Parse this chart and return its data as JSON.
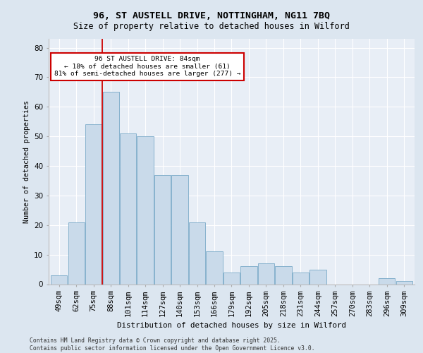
{
  "title1": "96, ST AUSTELL DRIVE, NOTTINGHAM, NG11 7BQ",
  "title2": "Size of property relative to detached houses in Wilford",
  "xlabel": "Distribution of detached houses by size in Wilford",
  "ylabel": "Number of detached properties",
  "categories": [
    "49sqm",
    "62sqm",
    "75sqm",
    "88sqm",
    "101sqm",
    "114sqm",
    "127sqm",
    "140sqm",
    "153sqm",
    "166sqm",
    "179sqm",
    "192sqm",
    "205sqm",
    "218sqm",
    "231sqm",
    "244sqm",
    "257sqm",
    "270sqm",
    "283sqm",
    "296sqm",
    "309sqm"
  ],
  "values": [
    3,
    21,
    54,
    65,
    51,
    50,
    37,
    37,
    21,
    11,
    4,
    6,
    7,
    6,
    4,
    5,
    0,
    0,
    0,
    2,
    1
  ],
  "bar_color": "#c9daea",
  "bar_edge_color": "#7aaac8",
  "red_line_x": 2.5,
  "annotation_text": "96 ST AUSTELL DRIVE: 84sqm\n← 18% of detached houses are smaller (61)\n81% of semi-detached houses are larger (277) →",
  "annotation_box_color": "#ffffff",
  "annotation_box_edge": "#cc0000",
  "bg_color": "#dce6f0",
  "plot_bg_color": "#e8eef6",
  "grid_color": "#ffffff",
  "ylim_max": 83,
  "yticks": [
    0,
    10,
    20,
    30,
    40,
    50,
    60,
    70,
    80
  ],
  "footer": "Contains HM Land Registry data © Crown copyright and database right 2025.\nContains public sector information licensed under the Open Government Licence v3.0."
}
